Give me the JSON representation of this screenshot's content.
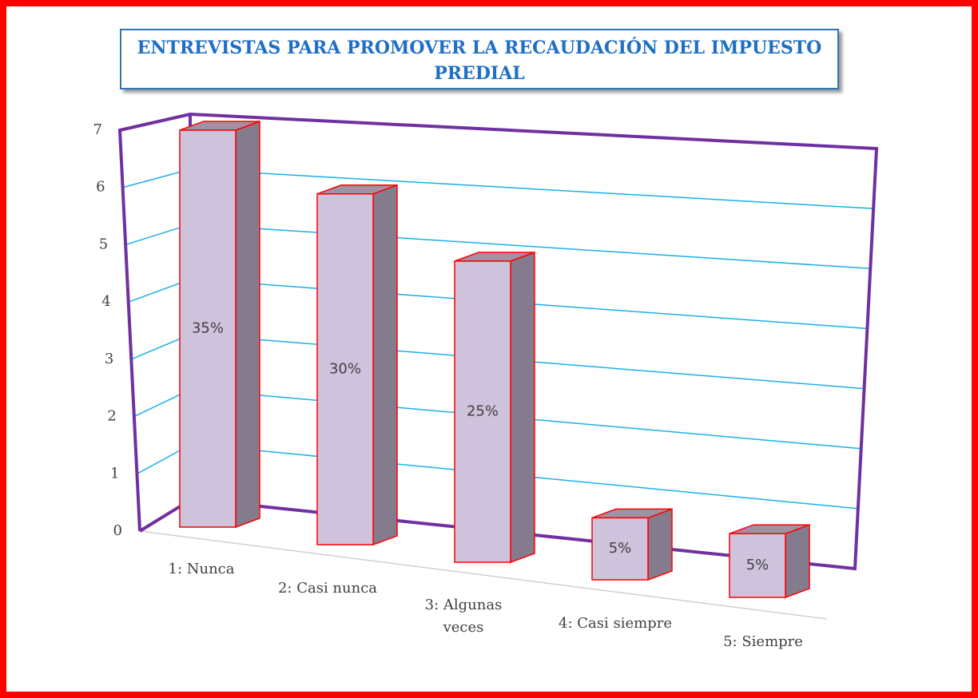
{
  "chart_data": {
    "type": "bar3d",
    "title": "ENTREVISTAS PARA PROMOVER LA RECAUDACIÓN DEL IMPUESTO PREDIAL",
    "categories": [
      "1: Nunca",
      "2: Casi nunca",
      "3: Algunas veces",
      "4: Casi siempre",
      "5: Siempre"
    ],
    "values": [
      7,
      6,
      5,
      1,
      1
    ],
    "value_labels": [
      "35%",
      "30%",
      "25%",
      "5%",
      "5%"
    ],
    "color": "#cfc2dd",
    "ylim": [
      0,
      7
    ],
    "yticks": [
      0,
      1,
      2,
      3,
      4,
      5,
      6,
      7
    ],
    "grid": true
  }
}
